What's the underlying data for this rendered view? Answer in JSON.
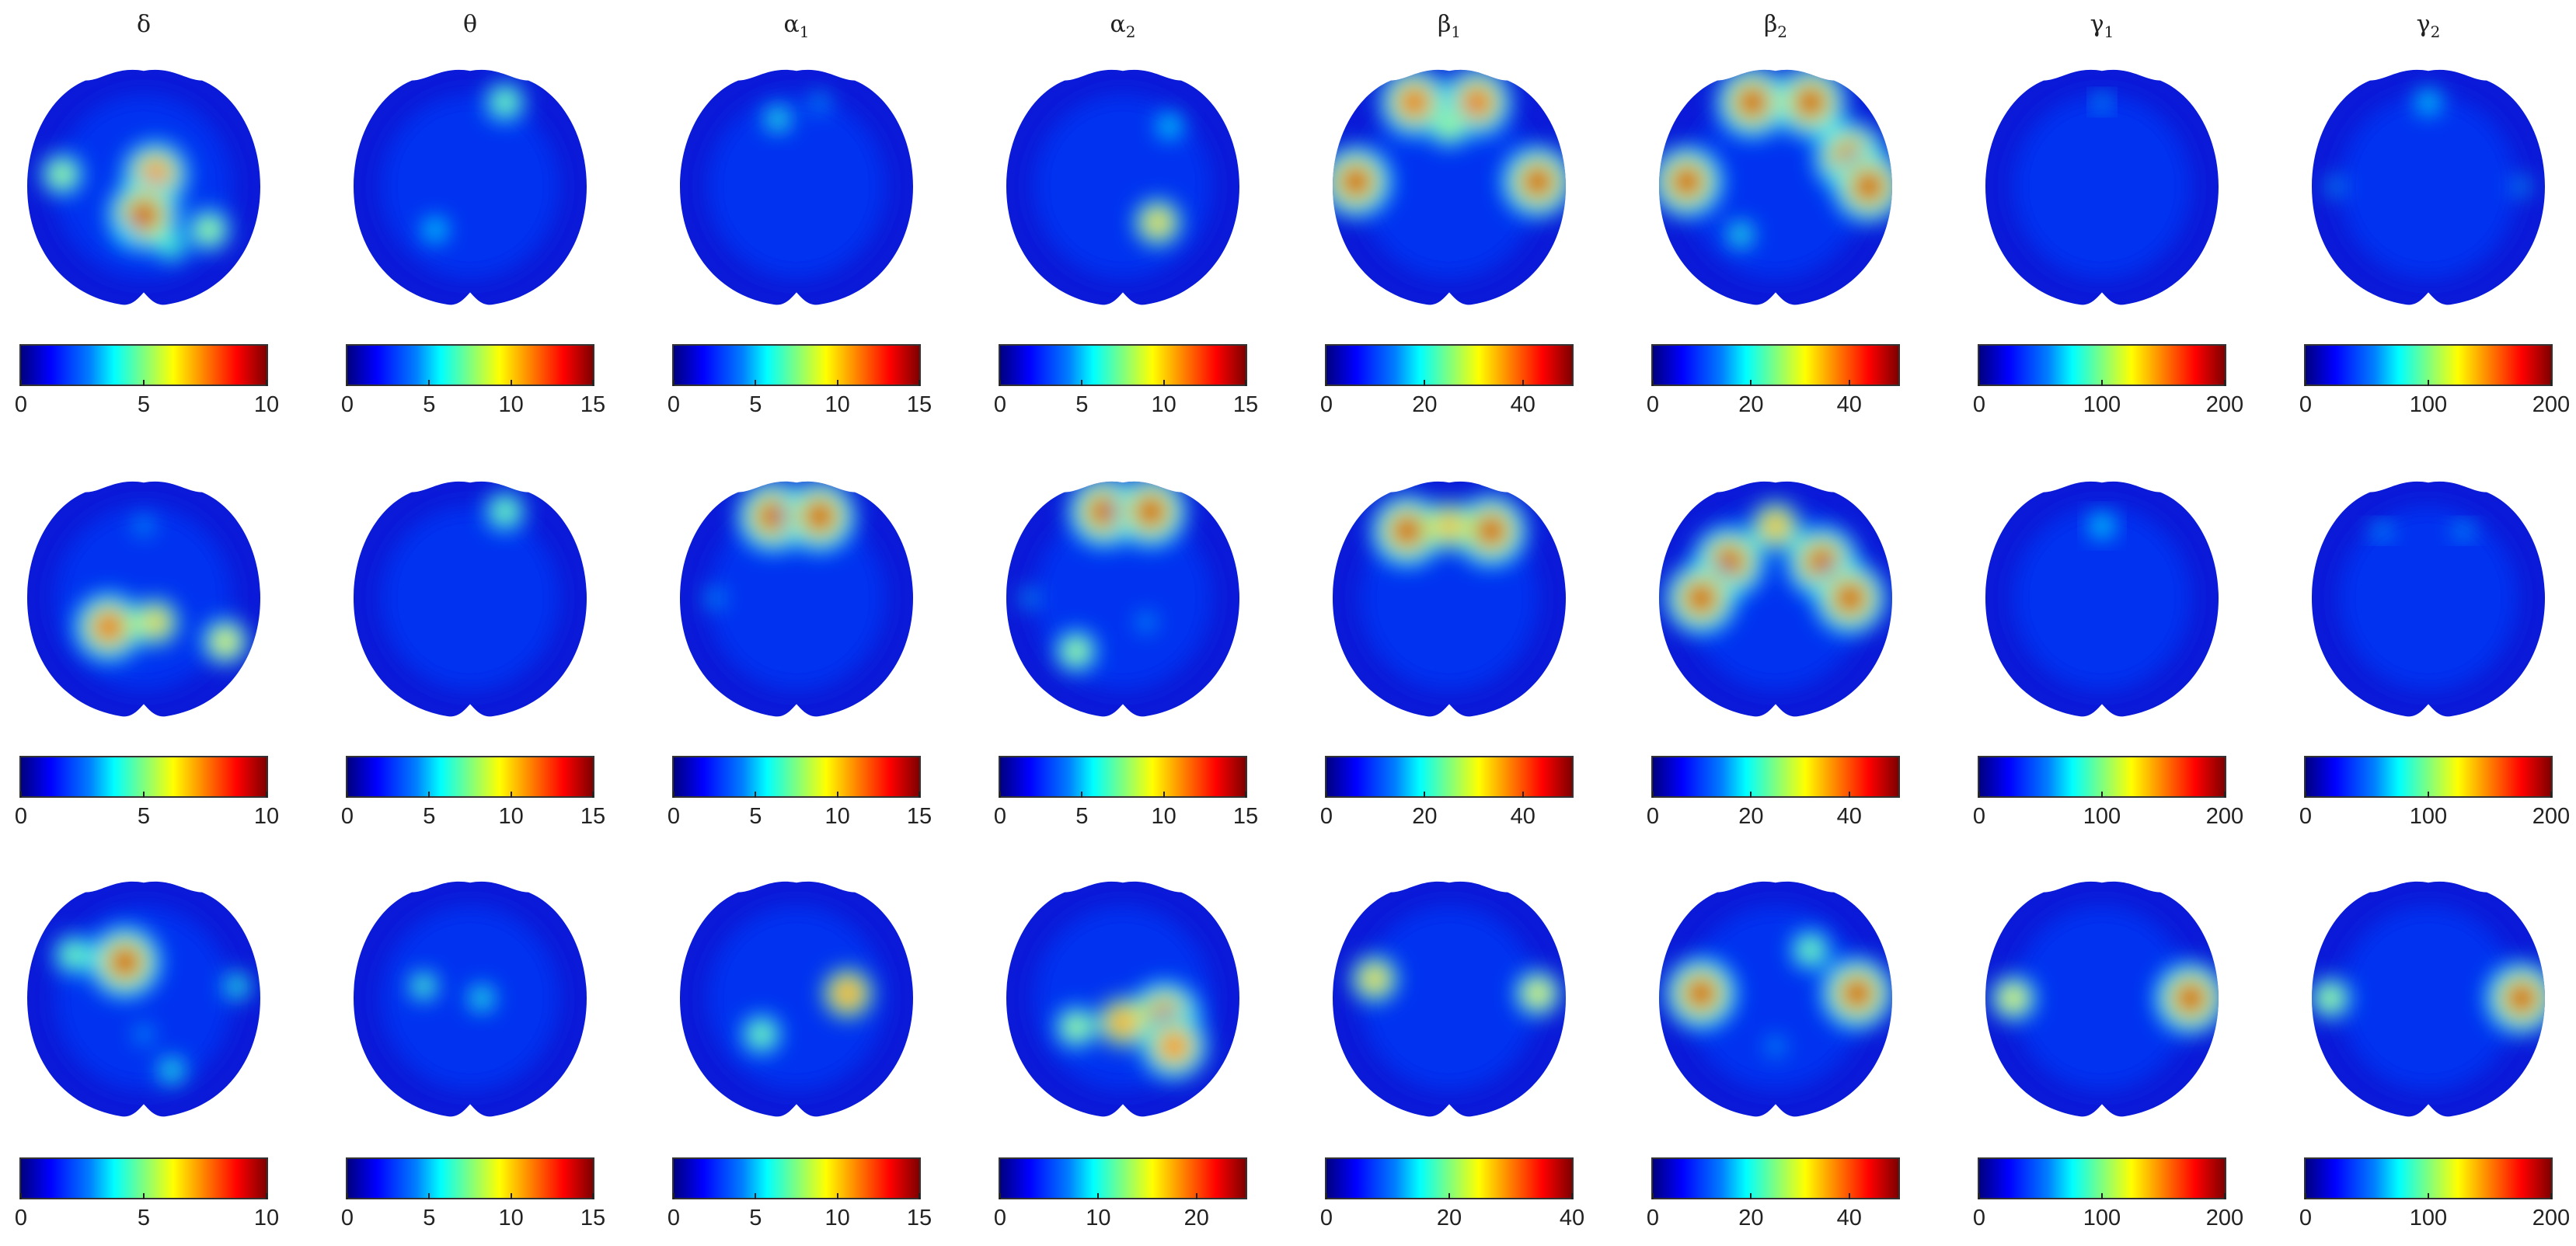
{
  "bands": [
    {
      "symbol": "δ",
      "sub": ""
    },
    {
      "symbol": "θ",
      "sub": ""
    },
    {
      "symbol": "α",
      "sub": "1"
    },
    {
      "symbol": "α",
      "sub": "2"
    },
    {
      "symbol": "β",
      "sub": "1"
    },
    {
      "symbol": "β",
      "sub": "2"
    },
    {
      "symbol": "γ",
      "sub": "1"
    },
    {
      "symbol": "γ",
      "sub": "2"
    }
  ],
  "rows": [
    {
      "scales": [
        {
          "max": 10,
          "ticks": [
            "0",
            "5",
            "10"
          ],
          "blobs": [
            [
              0.55,
              0.45,
              0.9
            ],
            [
              0.5,
              0.62,
              1.0
            ],
            [
              0.15,
              0.45,
              0.6
            ],
            [
              0.78,
              0.68,
              0.6
            ],
            [
              0.62,
              0.75,
              0.5
            ],
            [
              0.42,
              0.7,
              0.4
            ]
          ]
        },
        {
          "max": 15,
          "ticks": [
            "0",
            "5",
            "10",
            "15"
          ],
          "blobs": [
            [
              0.65,
              0.15,
              0.55
            ],
            [
              0.35,
              0.68,
              0.4
            ],
            [
              0.2,
              0.35,
              0.25
            ],
            [
              0.6,
              0.55,
              0.2
            ]
          ]
        },
        {
          "max": 15,
          "ticks": [
            "0",
            "5",
            "10",
            "15"
          ],
          "blobs": [
            [
              0.42,
              0.22,
              0.45
            ],
            [
              0.6,
              0.15,
              0.35
            ],
            [
              0.15,
              0.45,
              0.2
            ]
          ]
        },
        {
          "max": 15,
          "ticks": [
            "0",
            "5",
            "10",
            "15"
          ],
          "blobs": [
            [
              0.65,
              0.65,
              0.75
            ],
            [
              0.7,
              0.25,
              0.4
            ],
            [
              0.3,
              0.5,
              0.3
            ]
          ]
        },
        {
          "max": 50,
          "ticks": [
            "0",
            "20",
            "40"
          ],
          "blobs": [
            [
              0.35,
              0.15,
              0.95
            ],
            [
              0.62,
              0.15,
              0.95
            ],
            [
              0.1,
              0.48,
              1.0
            ],
            [
              0.88,
              0.48,
              1.0
            ],
            [
              0.5,
              0.8,
              0.3
            ],
            [
              0.5,
              0.25,
              0.6
            ]
          ]
        },
        {
          "max": 50,
          "ticks": [
            "0",
            "20",
            "40"
          ],
          "blobs": [
            [
              0.4,
              0.15,
              1.0
            ],
            [
              0.65,
              0.15,
              1.0
            ],
            [
              0.82,
              0.38,
              1.0
            ],
            [
              0.9,
              0.5,
              1.0
            ],
            [
              0.12,
              0.48,
              1.0
            ],
            [
              0.35,
              0.7,
              0.45
            ]
          ]
        },
        {
          "max": 200,
          "ticks": [
            "0",
            "100",
            "200"
          ],
          "blobs": [
            [
              0.5,
              0.15,
              0.35
            ],
            [
              0.1,
              0.45,
              0.3
            ],
            [
              0.9,
              0.45,
              0.3
            ],
            [
              0.5,
              0.8,
              0.25
            ]
          ]
        },
        {
          "max": 200,
          "ticks": [
            "0",
            "100",
            "200"
          ],
          "blobs": [
            [
              0.5,
              0.15,
              0.4
            ],
            [
              0.1,
              0.5,
              0.35
            ],
            [
              0.9,
              0.5,
              0.35
            ],
            [
              0.3,
              0.3,
              0.3
            ]
          ]
        }
      ]
    },
    {
      "scales": [
        {
          "max": 10,
          "ticks": [
            "0",
            "5",
            "10"
          ],
          "blobs": [
            [
              0.35,
              0.62,
              0.95
            ],
            [
              0.55,
              0.6,
              0.75
            ],
            [
              0.85,
              0.68,
              0.7
            ],
            [
              0.5,
              0.2,
              0.35
            ]
          ]
        },
        {
          "max": 15,
          "ticks": [
            "0",
            "5",
            "10",
            "15"
          ],
          "blobs": [
            [
              0.65,
              0.14,
              0.55
            ],
            [
              0.5,
              0.45,
              0.2
            ]
          ]
        },
        {
          "max": 15,
          "ticks": [
            "0",
            "5",
            "10",
            "15"
          ],
          "blobs": [
            [
              0.4,
              0.16,
              1.0
            ],
            [
              0.6,
              0.16,
              1.0
            ],
            [
              0.15,
              0.5,
              0.35
            ],
            [
              0.5,
              0.55,
              0.3
            ],
            [
              0.55,
              0.8,
              0.3
            ]
          ]
        },
        {
          "max": 15,
          "ticks": [
            "0",
            "5",
            "10",
            "15"
          ],
          "blobs": [
            [
              0.42,
              0.14,
              1.0
            ],
            [
              0.62,
              0.14,
              1.0
            ],
            [
              0.3,
              0.72,
              0.6
            ],
            [
              0.1,
              0.5,
              0.35
            ],
            [
              0.6,
              0.6,
              0.35
            ]
          ]
        },
        {
          "max": 50,
          "ticks": [
            "0",
            "20",
            "40"
          ],
          "blobs": [
            [
              0.32,
              0.22,
              1.0
            ],
            [
              0.68,
              0.22,
              1.0
            ],
            [
              0.5,
              0.2,
              0.8
            ]
          ]
        },
        {
          "max": 50,
          "ticks": [
            "0",
            "20",
            "40"
          ],
          "blobs": [
            [
              0.3,
              0.35,
              1.0
            ],
            [
              0.7,
              0.35,
              1.0
            ],
            [
              0.18,
              0.5,
              1.0
            ],
            [
              0.82,
              0.5,
              1.0
            ],
            [
              0.5,
              0.2,
              0.8
            ]
          ]
        },
        {
          "max": 200,
          "ticks": [
            "0",
            "100",
            "200"
          ],
          "blobs": [
            [
              0.5,
              0.2,
              0.4
            ],
            [
              0.2,
              0.4,
              0.3
            ],
            [
              0.8,
              0.4,
              0.3
            ]
          ]
        },
        {
          "max": 200,
          "ticks": [
            "0",
            "100",
            "200"
          ],
          "blobs": [
            [
              0.3,
              0.22,
              0.35
            ],
            [
              0.65,
              0.22,
              0.35
            ],
            [
              0.5,
              0.75,
              0.3
            ],
            [
              0.15,
              0.5,
              0.25
            ]
          ]
        }
      ]
    },
    {
      "scales": [
        {
          "max": 10,
          "ticks": [
            "0",
            "5",
            "10"
          ],
          "blobs": [
            [
              0.42,
              0.35,
              1.0
            ],
            [
              0.2,
              0.32,
              0.55
            ],
            [
              0.9,
              0.45,
              0.45
            ],
            [
              0.62,
              0.8,
              0.45
            ],
            [
              0.5,
              0.65,
              0.35
            ]
          ]
        },
        {
          "max": 15,
          "ticks": [
            "0",
            "5",
            "10",
            "15"
          ],
          "blobs": [
            [
              0.3,
              0.45,
              0.5
            ],
            [
              0.55,
              0.5,
              0.45
            ],
            [
              0.6,
              0.2,
              0.3
            ]
          ]
        },
        {
          "max": 15,
          "ticks": [
            "0",
            "5",
            "10",
            "15"
          ],
          "blobs": [
            [
              0.72,
              0.48,
              0.85
            ],
            [
              0.35,
              0.65,
              0.55
            ],
            [
              0.5,
              0.5,
              0.3
            ]
          ]
        },
        {
          "max": 25,
          "ticks": [
            "0",
            "10",
            "20"
          ],
          "blobs": [
            [
              0.68,
              0.58,
              1.0
            ],
            [
              0.5,
              0.6,
              0.85
            ],
            [
              0.3,
              0.62,
              0.6
            ],
            [
              0.72,
              0.7,
              0.9
            ]
          ]
        },
        {
          "max": 40,
          "ticks": [
            "0",
            "20",
            "40"
          ],
          "blobs": [
            [
              0.18,
              0.42,
              0.75
            ],
            [
              0.88,
              0.48,
              0.7
            ],
            [
              0.5,
              0.7,
              0.25
            ]
          ]
        },
        {
          "max": 50,
          "ticks": [
            "0",
            "20",
            "40"
          ],
          "blobs": [
            [
              0.18,
              0.48,
              1.0
            ],
            [
              0.85,
              0.48,
              1.0
            ],
            [
              0.65,
              0.3,
              0.55
            ],
            [
              0.5,
              0.7,
              0.35
            ]
          ]
        },
        {
          "max": 200,
          "ticks": [
            "0",
            "100",
            "200"
          ],
          "blobs": [
            [
              0.12,
              0.5,
              0.7
            ],
            [
              0.88,
              0.5,
              1.0
            ],
            [
              0.5,
              0.5,
              0.25
            ]
          ]
        },
        {
          "max": 200,
          "ticks": [
            "0",
            "100",
            "200"
          ],
          "blobs": [
            [
              0.08,
              0.5,
              0.6
            ],
            [
              0.9,
              0.5,
              1.0
            ],
            [
              0.5,
              0.7,
              0.25
            ]
          ]
        }
      ]
    }
  ]
}
